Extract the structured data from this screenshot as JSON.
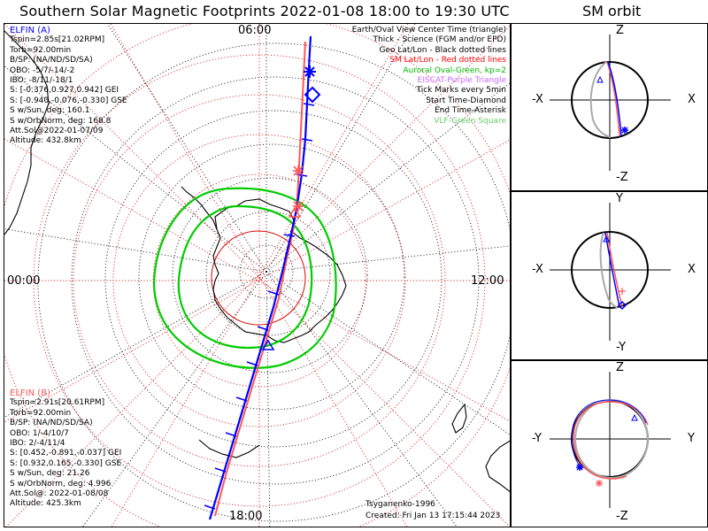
{
  "title": "Southern Solar Magnetic Footprints 2022-01-08 18:00 to 19:30 UTC",
  "sm_title": "SM orbit",
  "map": {
    "clock_labels": {
      "top": "06:00",
      "left": "00:00",
      "right": "12:00",
      "bottom": "18:00"
    },
    "legend": [
      {
        "text": "Earth/Oval View Center Time (triangle)",
        "color": "#000000"
      },
      {
        "text": "Thick - Science (FGM and/or EPD)",
        "color": "#000000"
      },
      {
        "text": "Geo Lat/Lon - Black dotted lines",
        "color": "#000000"
      },
      {
        "text": "SM Lat/Lon - Red dotted lines",
        "color": "#ff0000"
      },
      {
        "text": "Auroral Oval-Green, kp=2",
        "color": "#00bb00"
      },
      {
        "text": "EISCAT-Purple Triangle",
        "color": "#cc66ff"
      },
      {
        "text": "Tick Marks every 5min",
        "color": "#000000"
      },
      {
        "text": "Start Time-Diamond",
        "color": "#000000"
      },
      {
        "text": "End Time-Asterisk",
        "color": "#000000"
      },
      {
        "text": "VLF-Green Square",
        "color": "#66cc66"
      }
    ],
    "elfin_a": {
      "name": "ELFIN (A)",
      "color": "#0000ff",
      "lines": [
        "Tspin=2.85s[21.02RPM]",
        "Torb=92.00min",
        "B/SP: (NA/ND/SD/SA)",
        "OBO: -5/7/-14/-2",
        "IBO: -8/11/-18/1",
        "S: [-0.376,0.927,0.942] GEI",
        "S: [-0.940,-0.076,-0.330] GSE",
        "S w/Sun, deg: 160.1",
        "S w/OrbNorm, deg: 168.8",
        "Att.Sol@2022-01-07/09",
        "Altitude: 432.8km"
      ]
    },
    "elfin_b": {
      "name": "ELFIN (B)",
      "color": "#ff5555",
      "lines": [
        "Tspin=2.91s[20.61RPM]",
        "Torb=92.00min",
        "B/SP: (NA/ND/SD/SA)",
        "OBO: 1/-4/10/7",
        "IBO: 2/-4/11/4",
        "S: [0.452,-0.891,-0.037] GEI",
        "S: [0.932,0.165,-0.330] GSE",
        "S w/Sun, deg: 21.26",
        "S w/OrbNorm, deg: 4.996",
        "Att.Sol@: 2022-01-08/08",
        "Altitude: 425.3km"
      ]
    },
    "model": "Tsyganenko-1996",
    "created": "Created: Fri Jan 13 17:15:44 2023"
  },
  "sm_panels": [
    {
      "top": "Z",
      "bottom": "-Z",
      "left": "-X",
      "right": "X"
    },
    {
      "top": "Y",
      "bottom": "-Y",
      "left": "-X",
      "right": "X"
    },
    {
      "top": "Z",
      "bottom": "-Z",
      "left": "-Y",
      "right": "Y"
    }
  ],
  "colors": {
    "elfin_a": "#0000ff",
    "elfin_b": "#ff5555",
    "oval": "#00cc00",
    "sm_grid": "#dd0000",
    "geo_grid": "#000000"
  }
}
